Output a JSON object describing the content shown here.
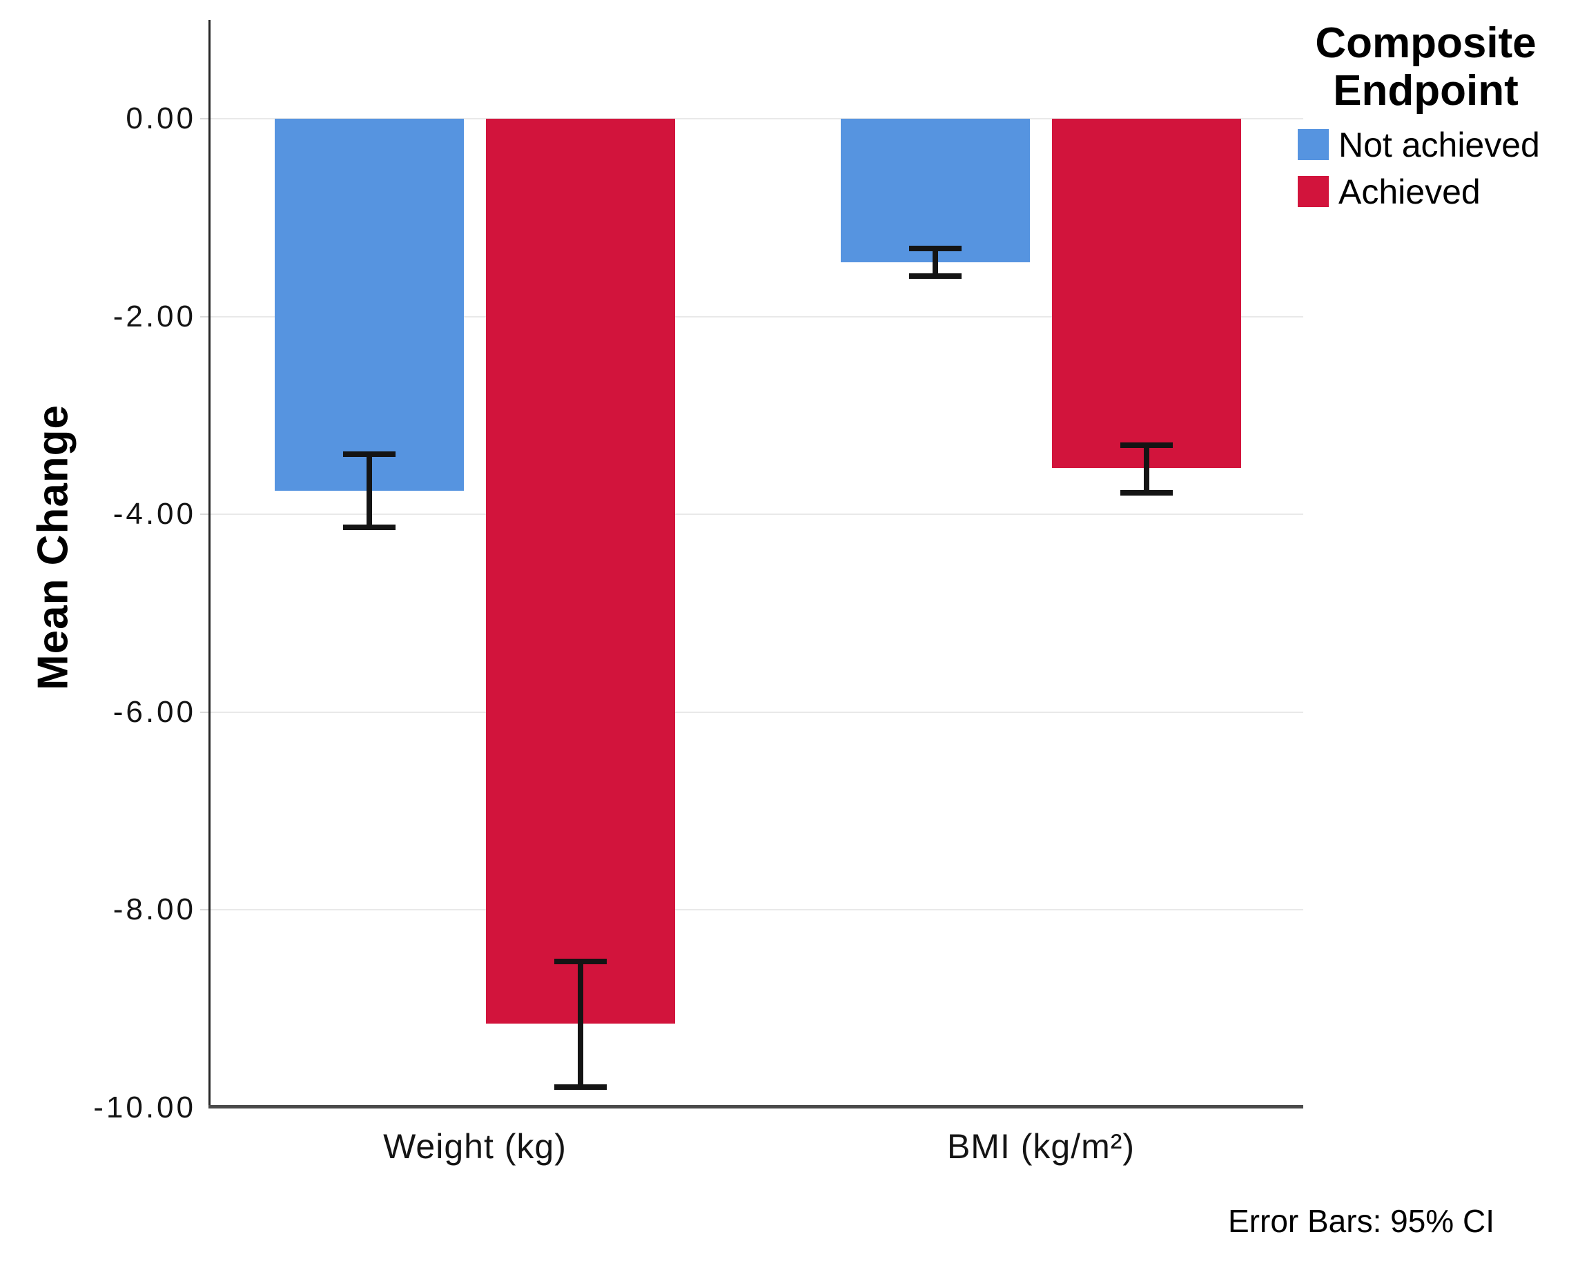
{
  "chart_data": {
    "type": "bar",
    "title": "",
    "ylabel": "Mean Change",
    "xlabel": "",
    "categories": [
      "Weight (kg)",
      "BMI (kg/m²)"
    ],
    "series": [
      {
        "name": "Not achieved",
        "color": "#5694E0",
        "values": [
          -3.76,
          -1.45
        ],
        "ci_upper": [
          -3.39,
          -1.31
        ],
        "ci_lower": [
          -4.13,
          -1.59
        ]
      },
      {
        "name": "Achieved",
        "color": "#D2143C",
        "values": [
          -9.15,
          -3.53
        ],
        "ci_upper": [
          -8.52,
          -3.3
        ],
        "ci_lower": [
          -9.79,
          -3.78
        ]
      }
    ],
    "ylim": [
      -10,
      1
    ],
    "yticks": [
      0,
      -2,
      -4,
      -6,
      -8,
      -10
    ],
    "ytick_labels": [
      "0.00",
      "-2.00",
      "-4.00",
      "-6.00",
      "-8.00",
      "-10.00"
    ],
    "grid": "horizontal",
    "legend_title": "Composite Endpoint",
    "legend_position": "top-right",
    "footnote": "Error Bars: 95% CI"
  }
}
